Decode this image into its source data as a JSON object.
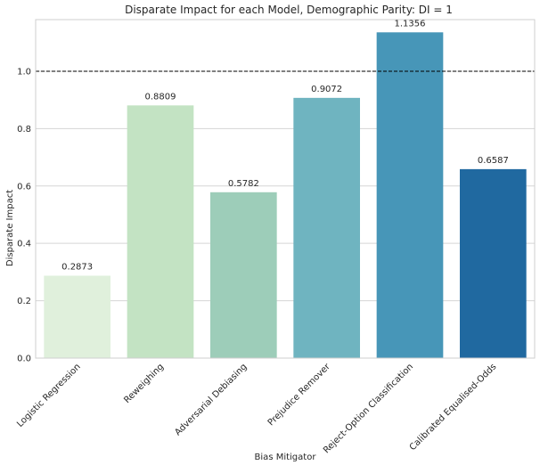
{
  "chart_data": {
    "type": "bar",
    "title": "Disparate Impact for each Model, Demographic Parity: DI = 1",
    "xlabel": "Bias Mitigator",
    "ylabel": "Disparate Impact",
    "ylim": [
      0,
      1.18
    ],
    "yticks": [
      "0.0",
      "0.2",
      "0.4",
      "0.6",
      "0.8",
      "1.0"
    ],
    "grid": "horizontal",
    "reference_line": {
      "y": 1.0,
      "style": "dashed",
      "color": "#000000"
    },
    "categories": [
      "Logistic Regression",
      "Reweighing",
      "Adversarial Debiasing",
      "Prejudice Remover",
      "Reject-Option Classification",
      "Calibrated Equalised-Odds"
    ],
    "values": [
      0.2873,
      0.8809,
      0.5782,
      0.9072,
      1.1356,
      0.6587
    ],
    "value_labels": [
      "0.2873",
      "0.8809",
      "0.5782",
      "0.9072",
      "1.1356",
      "0.6587"
    ],
    "colors": [
      "#e0f0dc",
      "#c3e3c3",
      "#9dcdb9",
      "#6fb4c0",
      "#4796b8",
      "#2069a0"
    ]
  }
}
